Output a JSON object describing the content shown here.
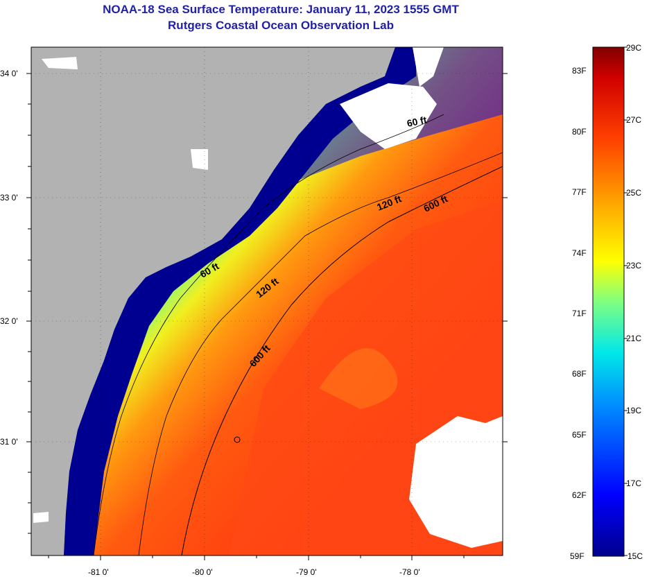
{
  "title": {
    "line1": "NOAA-18 Sea Surface Temperature:  January 11, 2023 1555 GMT",
    "line2": "Rutgers Coastal Ocean Observation Lab"
  },
  "map": {
    "lat_labels": [
      "34 0'",
      "33 0'",
      "32 0'",
      "31 0'"
    ],
    "lon_labels": [
      "-81 0'",
      "-80 0'",
      "-79 0'",
      "-78 0'"
    ],
    "contour_labels": {
      "c60_top": "60 ft",
      "c120_upper": "120 ft",
      "c600_upper": "600 ft",
      "c60_mid": "60 ft",
      "c120_mid": "120 ft",
      "c600_lower": "600 ft"
    },
    "colors": {
      "land": "#b2b2b2",
      "cloud": "#ffffff",
      "cold": "#00008c",
      "warm": "#ff3000"
    }
  },
  "colorbar": {
    "fahrenheit_labels": [
      "83F",
      "80F",
      "77F",
      "74F",
      "71F",
      "68F",
      "65F",
      "62F",
      "59F"
    ],
    "celsius_labels": [
      "29C",
      "27C",
      "25C",
      "23C",
      "21C",
      "19C",
      "17C",
      "15C"
    ],
    "range_c": [
      15,
      29
    ]
  }
}
